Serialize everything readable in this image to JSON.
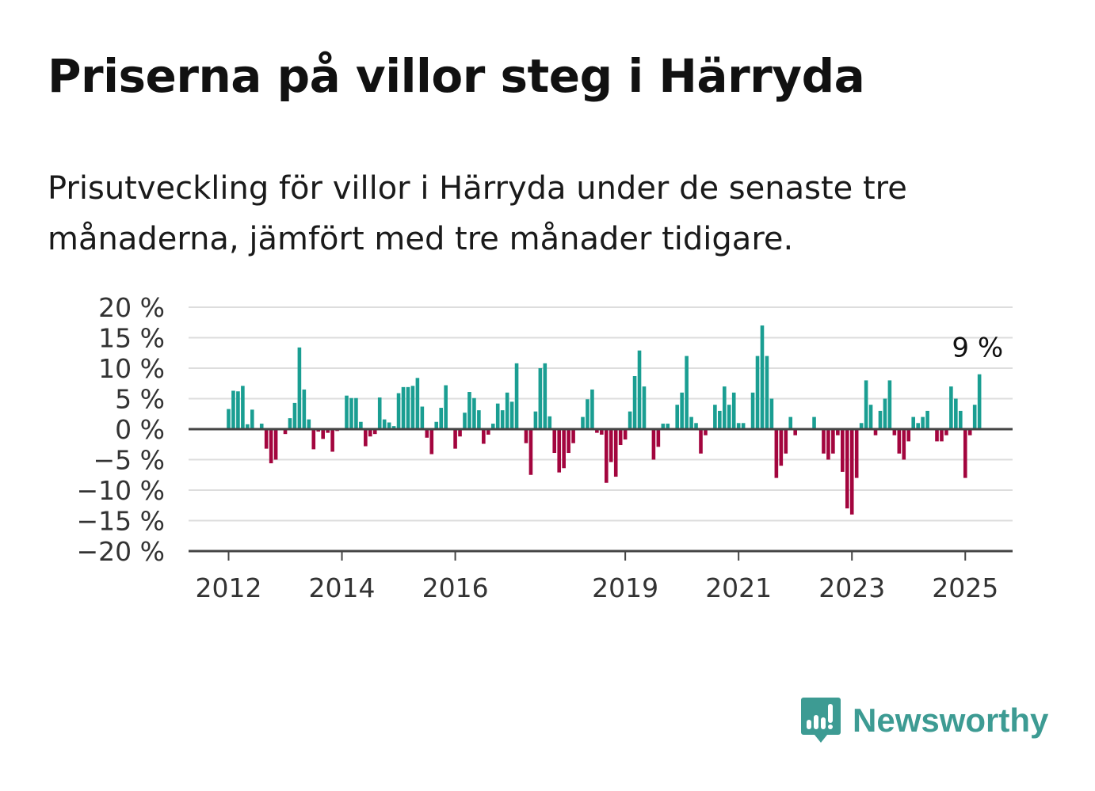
{
  "title": "Priserna på villor steg i Härryda",
  "subtitle": "Prisutveckling för villor i Härryda under de senaste tre månaderna, jämfört med tre månader tidigare.",
  "brand": {
    "name": "Newsworthy",
    "icon": "newsworthy-logo-icon"
  },
  "colors": {
    "positive": "#1a9e92",
    "negative": "#a3053e",
    "grid": "#dddddd",
    "axis": "#444444"
  },
  "chart_data": {
    "type": "bar",
    "title": "",
    "xlabel": "",
    "ylabel": "",
    "ylim": [
      -20,
      20
    ],
    "y_ticks": [
      20,
      15,
      10,
      5,
      0,
      -5,
      -10,
      -15,
      -20
    ],
    "y_tick_labels": [
      "20 %",
      "15 %",
      "10 %",
      "5 %",
      "0 %",
      "−5 %",
      "−10 %",
      "−15 %",
      "−20 %"
    ],
    "x_tick_labels": [
      "2012",
      "2014",
      "2016",
      "2019",
      "2021",
      "2023",
      "2025"
    ],
    "x_tick_years": [
      2012,
      2014,
      2016,
      2019,
      2021,
      2023,
      2025
    ],
    "start": "2012-01",
    "grid": true,
    "annotation": {
      "text": "9 %",
      "target": "last"
    },
    "values": [
      3.3,
      6.3,
      6.2,
      7.1,
      0.8,
      3.2,
      0.0,
      0.9,
      -3.2,
      -5.6,
      -5.0,
      0.0,
      -0.8,
      1.8,
      4.3,
      13.4,
      6.5,
      1.6,
      -3.3,
      -0.4,
      -1.6,
      -0.6,
      -3.7,
      -0.3,
      0.0,
      5.5,
      5.1,
      5.1,
      1.2,
      -2.8,
      -1.2,
      -0.8,
      5.2,
      1.6,
      1.1,
      0.5,
      5.9,
      6.9,
      6.9,
      7.1,
      8.4,
      3.7,
      -1.4,
      -4.1,
      1.2,
      3.5,
      7.2,
      0.0,
      -3.2,
      -1.2,
      2.7,
      6.1,
      5.1,
      3.1,
      -2.4,
      -0.9,
      0.9,
      4.2,
      3.1,
      6.0,
      4.5,
      10.8,
      0.0,
      -2.3,
      -7.5,
      2.9,
      10.0,
      10.8,
      2.1,
      -3.9,
      -7.1,
      -6.4,
      -3.9,
      -2.3,
      0.0,
      2.0,
      4.9,
      6.5,
      -0.6,
      -0.9,
      -8.8,
      -5.4,
      -7.8,
      -2.6,
      -1.7,
      2.9,
      8.7,
      12.9,
      7.0,
      0.0,
      -5.0,
      -2.9,
      0.9,
      0.9,
      0.0,
      4.0,
      6.0,
      12.0,
      2.0,
      1.0,
      -4.0,
      -1.0,
      0.0,
      4.0,
      3.0,
      7.0,
      4.0,
      6.0,
      1.0,
      1.0,
      0.0,
      6.0,
      12.0,
      17.0,
      12.0,
      5.0,
      -8.0,
      -6.0,
      -4.0,
      2.0,
      -1.0,
      0.0,
      0.0,
      0.0,
      2.0,
      0.0,
      -4.0,
      -5.0,
      -4.0,
      -1.0,
      -7.0,
      -13.0,
      -14.0,
      -8.0,
      1.0,
      8.0,
      4.0,
      -1.0,
      3.0,
      5.0,
      8.0,
      -1.0,
      -4.0,
      -5.0,
      -2.0,
      2.0,
      1.0,
      2.0,
      3.0,
      0.0,
      -2.0,
      -2.0,
      -1.0,
      7.0,
      5.0,
      3.0,
      -8.0,
      -1.0,
      4.0,
      9.0
    ]
  }
}
